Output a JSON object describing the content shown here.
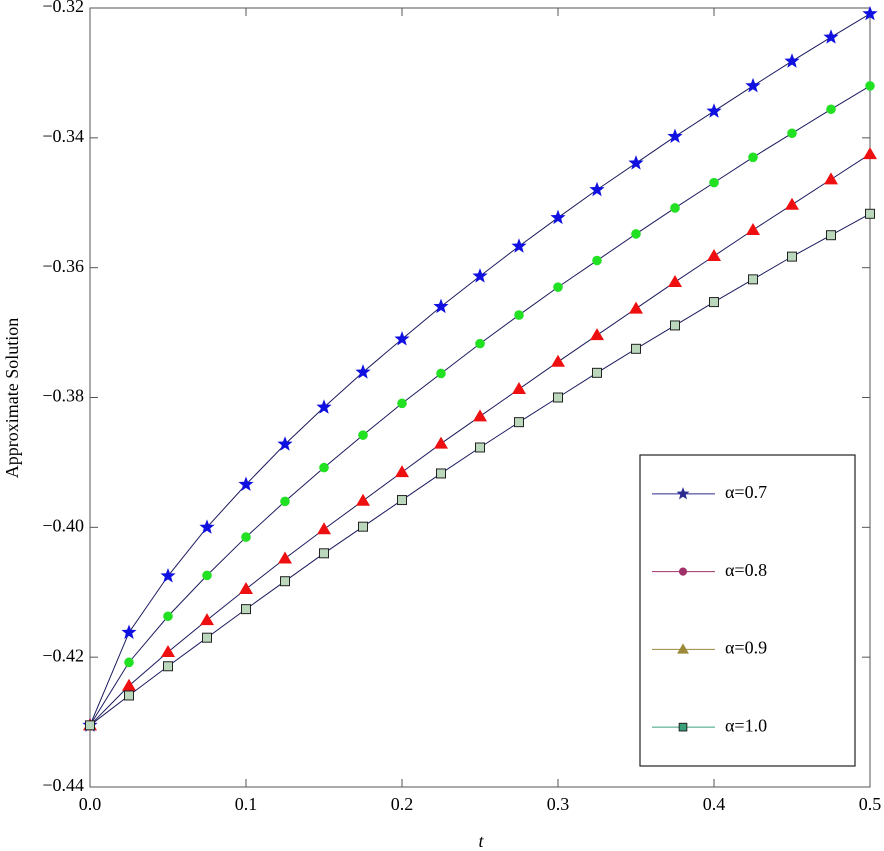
{
  "chart_data": {
    "type": "line",
    "x_label": "t",
    "y_label": "Approximate Solution",
    "x": [
      0,
      0.025,
      0.05,
      0.075,
      0.1,
      0.125,
      0.15,
      0.175,
      0.2,
      0.225,
      0.25,
      0.275,
      0.3,
      0.325,
      0.35,
      0.375,
      0.4,
      0.425,
      0.45,
      0.475,
      0.5
    ],
    "xlim": [
      0,
      0.5
    ],
    "ylim": [
      -0.44,
      -0.32
    ],
    "xticks": [
      {
        "value": 0,
        "label": "0.0"
      },
      {
        "value": 0.1,
        "label": "0.1"
      },
      {
        "value": 0.2,
        "label": "0.2"
      },
      {
        "value": 0.3,
        "label": "0.3"
      },
      {
        "value": 0.4,
        "label": "0.4"
      },
      {
        "value": 0.5,
        "label": "0.5"
      }
    ],
    "yticks": [
      {
        "value": -0.44,
        "label": "−0.44"
      },
      {
        "value": -0.42,
        "label": "−0.42"
      },
      {
        "value": -0.4,
        "label": "−0.40"
      },
      {
        "value": -0.38,
        "label": "−0.38"
      },
      {
        "value": -0.36,
        "label": "−0.36"
      },
      {
        "value": -0.34,
        "label": "−0.34"
      },
      {
        "value": -0.32,
        "label": "−0.32"
      }
    ],
    "line_color": "#1a1a5e",
    "legend": "lower right",
    "series": [
      {
        "name": "α=0.7",
        "marker": "star",
        "color": "#1010e0",
        "legend_color": "#2a2a90",
        "values": [
          -0.4305,
          -0.4162,
          -0.4075,
          -0.4,
          -0.3934,
          -0.3872,
          -0.3815,
          -0.3761,
          -0.371,
          -0.366,
          -0.3613,
          -0.3567,
          -0.3523,
          -0.348,
          -0.3439,
          -0.3398,
          -0.3359,
          -0.332,
          -0.3282,
          -0.3245,
          -0.3209
        ]
      },
      {
        "name": "α=0.8",
        "marker": "circle",
        "color": "#22e022",
        "legend_color": "#a0306a",
        "values": [
          -0.4305,
          -0.4208,
          -0.4137,
          -0.4074,
          -0.4015,
          -0.396,
          -0.3908,
          -0.3858,
          -0.3809,
          -0.3763,
          -0.3717,
          -0.3673,
          -0.363,
          -0.3589,
          -0.3548,
          -0.3508,
          -0.3469,
          -0.343,
          -0.3393,
          -0.3356,
          -0.332
        ]
      },
      {
        "name": "α=0.9",
        "marker": "triangle",
        "color": "#ee1010",
        "legend_color": "#9a8a3a",
        "values": [
          -0.4305,
          -0.4244,
          -0.4192,
          -0.4143,
          -0.4095,
          -0.4048,
          -0.4003,
          -0.3959,
          -0.3915,
          -0.3871,
          -0.3829,
          -0.3787,
          -0.3745,
          -0.3704,
          -0.3663,
          -0.3622,
          -0.3582,
          -0.3542,
          -0.3503,
          -0.3464,
          -0.3425
        ]
      },
      {
        "name": "α=1.0",
        "marker": "square",
        "color": "#bcd8bc",
        "legend_color": "#3aa07a",
        "values": [
          -0.4305,
          -0.4259,
          -0.4214,
          -0.417,
          -0.4126,
          -0.4083,
          -0.404,
          -0.3999,
          -0.3958,
          -0.3917,
          -0.3877,
          -0.3838,
          -0.38,
          -0.3762,
          -0.3725,
          -0.3689,
          -0.3653,
          -0.3618,
          -0.3583,
          -0.355,
          -0.3517
        ]
      }
    ]
  }
}
